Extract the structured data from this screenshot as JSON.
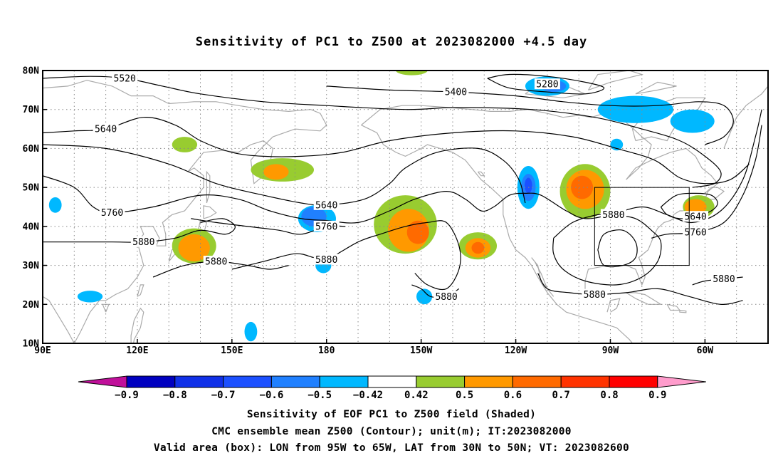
{
  "title": "Sensitivity of PC1 to Z500 at 2023082000 +4.5 day",
  "captions": [
    "Sensitivity of EOF PC1 to Z500 field (Shaded)",
    "CMC ensemble mean Z500 (Contour); unit(m); IT:2023082000",
    "Valid area (box): LON from 95W to 65W, LAT from 30N to 50N; VT: 2023082600"
  ],
  "map": {
    "lon_range": [
      90,
      320
    ],
    "lat_range": [
      10,
      80
    ],
    "x_ticks": [
      {
        "lon": 90,
        "label": "90E"
      },
      {
        "lon": 120,
        "label": "120E"
      },
      {
        "lon": 150,
        "label": "150E"
      },
      {
        "lon": 180,
        "label": "180"
      },
      {
        "lon": 210,
        "label": "150W"
      },
      {
        "lon": 240,
        "label": "120W"
      },
      {
        "lon": 270,
        "label": "90W"
      },
      {
        "lon": 300,
        "label": "60W"
      }
    ],
    "y_ticks": [
      {
        "lat": 80,
        "label": "80N"
      },
      {
        "lat": 70,
        "label": "70N"
      },
      {
        "lat": 60,
        "label": "60N"
      },
      {
        "lat": 50,
        "label": "50N"
      },
      {
        "lat": 40,
        "label": "40N"
      },
      {
        "lat": 30,
        "label": "30N"
      },
      {
        "lat": 20,
        "label": "20N"
      },
      {
        "lat": 10,
        "label": "10N"
      }
    ],
    "valid_box": {
      "lon_min": 265,
      "lon_max": 295,
      "lat_min": 30,
      "lat_max": 50
    },
    "colors": {
      "land": "#aaaaaa",
      "grid": "#888888",
      "contour": "#000000"
    }
  },
  "contours": [
    {
      "value": 5280,
      "label": "5280",
      "label_at": [
        250,
        76.5
      ],
      "pts": [
        [
          231,
          78
        ],
        [
          238,
          79
        ],
        [
          250,
          78.5
        ],
        [
          262,
          77
        ],
        [
          268,
          75.5
        ],
        [
          262,
          74
        ],
        [
          250,
          74.5
        ],
        [
          238,
          75.5
        ],
        [
          231,
          78
        ]
      ]
    },
    {
      "value": 5400,
      "label": "5400",
      "label_at": [
        221,
        74.5
      ],
      "pts": [
        [
          180,
          76
        ],
        [
          200,
          75
        ],
        [
          221,
          74.5
        ],
        [
          240,
          73.5
        ],
        [
          255,
          72
        ],
        [
          270,
          71
        ],
        [
          285,
          71
        ],
        [
          298,
          72
        ],
        [
          306,
          71
        ],
        [
          309,
          67
        ],
        [
          306,
          63
        ],
        [
          300,
          61
        ]
      ]
    },
    {
      "value": 5520,
      "label": "5520",
      "label_at": [
        116,
        78
      ],
      "pts": [
        [
          90,
          78
        ],
        [
          105,
          78.5
        ],
        [
          116,
          78
        ],
        [
          128,
          76
        ],
        [
          140,
          74
        ],
        [
          160,
          72
        ],
        [
          180,
          71
        ],
        [
          205,
          70
        ],
        [
          221,
          70.5
        ],
        [
          245,
          70
        ],
        [
          265,
          68
        ],
        [
          280,
          65
        ],
        [
          292,
          62
        ],
        [
          300,
          58
        ],
        [
          305,
          54
        ],
        [
          303,
          51
        ],
        [
          296,
          50
        ]
      ]
    },
    {
      "value": 5640,
      "label": "5640",
      "label_at": [
        110,
        65
      ],
      "pts": [
        [
          90,
          64
        ],
        [
          100,
          64.5
        ],
        [
          110,
          65
        ],
        [
          122,
          68
        ],
        [
          132,
          66
        ],
        [
          140,
          62
        ],
        [
          150,
          59
        ],
        [
          160,
          58
        ],
        [
          172,
          58
        ],
        [
          185,
          59
        ],
        [
          200,
          62
        ],
        [
          220,
          64
        ],
        [
          240,
          64.5
        ],
        [
          258,
          63
        ],
        [
          272,
          60
        ],
        [
          284,
          57
        ],
        [
          292,
          52.5
        ],
        [
          300,
          51
        ],
        [
          308,
          52
        ],
        [
          314,
          56
        ]
      ]
    },
    {
      "value": 5640,
      "label": "5640",
      "label_at": [
        180,
        45.5
      ],
      "pts": [
        [
          90,
          61
        ],
        [
          110,
          60
        ],
        [
          130,
          56
        ],
        [
          145,
          51
        ],
        [
          160,
          48
        ],
        [
          172,
          46
        ],
        [
          180,
          45.5
        ],
        [
          192,
          47
        ],
        [
          200,
          51
        ],
        [
          205,
          55
        ],
        [
          215,
          59
        ],
        [
          228,
          60
        ],
        [
          236,
          57
        ],
        [
          241,
          52
        ],
        [
          243,
          46
        ]
      ]
    },
    {
      "value": 5640,
      "label": "5640",
      "label_at": [
        297,
        42.5
      ],
      "pts": [
        [
          286,
          45
        ],
        [
          288,
          43
        ],
        [
          292,
          42
        ],
        [
          297,
          42.5
        ],
        [
          302,
          44
        ],
        [
          304,
          46
        ],
        [
          302,
          48
        ],
        [
          297,
          48.5
        ],
        [
          291,
          48
        ],
        [
          286,
          45
        ]
      ]
    },
    {
      "value": 5760,
      "label": "5760",
      "label_at": [
        112,
        43.5
      ],
      "pts": [
        [
          90,
          53
        ],
        [
          100,
          50
        ],
        [
          106,
          45
        ],
        [
          112,
          43.5
        ],
        [
          125,
          45
        ],
        [
          140,
          48
        ],
        [
          152,
          47
        ],
        [
          162,
          44
        ],
        [
          172,
          42
        ],
        [
          180,
          41.5
        ],
        [
          190,
          41
        ],
        [
          200,
          44
        ],
        [
          208,
          47
        ],
        [
          218,
          49
        ],
        [
          224,
          47
        ],
        [
          229,
          44
        ],
        [
          233,
          45
        ],
        [
          238,
          48
        ],
        [
          243,
          48.5
        ],
        [
          248,
          48
        ],
        [
          256,
          44
        ],
        [
          262,
          42
        ],
        [
          270,
          43
        ],
        [
          280,
          45
        ],
        [
          288,
          43
        ],
        [
          296,
          41
        ],
        [
          305,
          44
        ],
        [
          312,
          52
        ],
        [
          316,
          63
        ],
        [
          318,
          70
        ]
      ]
    },
    {
      "value": 5760,
      "label": "5760",
      "label_at": [
        180,
        40
      ],
      "pts": [
        [
          137,
          42
        ],
        [
          145,
          41
        ],
        [
          155,
          40
        ],
        [
          165,
          39
        ],
        [
          172,
          38
        ],
        [
          180,
          40
        ],
        [
          186,
          40
        ]
      ]
    },
    {
      "value": 5760,
      "label": "5760",
      "label_at": [
        297,
        38.5
      ],
      "pts": [
        [
          283,
          37
        ],
        [
          288,
          38
        ],
        [
          297,
          38.5
        ],
        [
          306,
          41
        ],
        [
          312,
          48
        ],
        [
          316,
          57
        ],
        [
          318,
          66
        ]
      ]
    },
    {
      "value": 5880,
      "label": "5880",
      "label_at": [
        122,
        36
      ],
      "pts": [
        [
          90,
          36
        ],
        [
          100,
          36
        ],
        [
          112,
          36
        ],
        [
          122,
          36
        ],
        [
          132,
          37
        ],
        [
          140,
          39
        ],
        [
          148,
          38
        ],
        [
          151,
          40
        ],
        [
          147,
          42
        ],
        [
          140,
          41
        ]
      ]
    },
    {
      "value": 5880,
      "label": "5880",
      "label_at": [
        180,
        31.5
      ],
      "pts": [
        [
          150,
          29
        ],
        [
          160,
          31
        ],
        [
          170,
          33
        ],
        [
          176,
          32
        ],
        [
          180,
          31.5
        ],
        [
          190,
          36
        ],
        [
          197,
          38
        ],
        [
          205,
          40
        ],
        [
          212,
          41
        ],
        [
          218,
          41
        ],
        [
          222,
          35
        ],
        [
          222,
          29
        ],
        [
          218,
          24
        ],
        [
          212,
          25
        ],
        [
          208,
          28
        ]
      ]
    },
    {
      "value": 5880,
      "label": "5880",
      "label_at": [
        145,
        31
      ],
      "pts": [
        [
          125,
          27
        ],
        [
          135,
          30
        ],
        [
          145,
          31
        ],
        [
          155,
          30
        ],
        [
          162,
          29
        ],
        [
          168,
          30
        ]
      ]
    },
    {
      "value": 5880,
      "label": "5880",
      "label_at": [
        218,
        22
      ],
      "pts": [
        [
          207,
          25
        ],
        [
          210,
          24
        ],
        [
          213,
          22
        ],
        [
          218,
          22
        ],
        [
          222,
          24
        ]
      ]
    },
    {
      "value": 5880,
      "label": "5880",
      "label_at": [
        265,
        22.5
      ],
      "pts": [
        [
          247,
          28
        ],
        [
          250,
          24
        ],
        [
          257,
          23
        ],
        [
          265,
          22.5
        ],
        [
          275,
          23
        ],
        [
          285,
          24
        ],
        [
          295,
          22
        ],
        [
          305,
          20
        ],
        [
          312,
          21
        ]
      ]
    },
    {
      "value": 5880,
      "label": "5880",
      "label_at": [
        271,
        43
      ],
      "pts": [
        [
          252,
          37
        ],
        [
          258,
          41
        ],
        [
          266,
          43
        ],
        [
          271,
          43
        ],
        [
          278,
          42
        ],
        [
          283,
          39
        ],
        [
          286,
          36
        ],
        [
          285,
          31
        ],
        [
          280,
          27
        ],
        [
          272,
          25
        ],
        [
          262,
          26
        ],
        [
          255,
          29
        ],
        [
          252,
          33
        ],
        [
          252,
          37
        ]
      ]
    },
    {
      "value": 5880,
      "label": "5880",
      "label_at": [
        306,
        26.5
      ],
      "pts": [
        [
          296,
          25
        ],
        [
          300,
          26
        ],
        [
          306,
          26.5
        ],
        [
          312,
          27
        ]
      ]
    },
    {
      "value": 5880,
      "label": "",
      "label_at": [
        0,
        0
      ],
      "pts": [
        [
          266,
          34
        ],
        [
          268,
          38
        ],
        [
          274,
          39
        ],
        [
          278,
          36
        ],
        [
          278,
          32
        ],
        [
          274,
          30
        ],
        [
          268,
          30
        ],
        [
          266,
          34
        ]
      ]
    }
  ],
  "blobs": [
    {
      "lon": 135,
      "lat": 61,
      "rx": 4,
      "ry": 2,
      "level": 0.5
    },
    {
      "lon": 166,
      "lat": 54.5,
      "rx": 10,
      "ry": 3,
      "level": 0.5
    },
    {
      "lon": 164,
      "lat": 54,
      "rx": 4,
      "ry": 2,
      "level": 0.6
    },
    {
      "lon": 138,
      "lat": 35,
      "rx": 7,
      "ry": 4.5,
      "level": 0.5
    },
    {
      "lon": 138,
      "lat": 34.5,
      "rx": 5,
      "ry": 3.5,
      "level": 0.6
    },
    {
      "lon": 205,
      "lat": 40.5,
      "rx": 10,
      "ry": 7.5,
      "level": 0.5
    },
    {
      "lon": 206,
      "lat": 39,
      "rx": 6.5,
      "ry": 5.5,
      "level": 0.6
    },
    {
      "lon": 209,
      "lat": 38.5,
      "rx": 3.5,
      "ry": 3,
      "level": 0.7
    },
    {
      "lon": 228,
      "lat": 35,
      "rx": 6,
      "ry": 3.5,
      "level": 0.5
    },
    {
      "lon": 228,
      "lat": 34.5,
      "rx": 4,
      "ry": 2.5,
      "level": 0.6
    },
    {
      "lon": 228,
      "lat": 34.5,
      "rx": 2,
      "ry": 1.5,
      "level": 0.7
    },
    {
      "lon": 262,
      "lat": 49,
      "rx": 8,
      "ry": 7,
      "level": 0.5
    },
    {
      "lon": 262,
      "lat": 49.5,
      "rx": 6,
      "ry": 5,
      "level": 0.6
    },
    {
      "lon": 261,
      "lat": 50,
      "rx": 3.5,
      "ry": 3,
      "level": 0.7
    },
    {
      "lon": 298,
      "lat": 45,
      "rx": 5,
      "ry": 3,
      "level": 0.5
    },
    {
      "lon": 297,
      "lat": 45,
      "rx": 3.5,
      "ry": 2,
      "level": 0.6
    },
    {
      "lon": 207,
      "lat": 80,
      "rx": 5,
      "ry": 1.2,
      "level": 0.5
    },
    {
      "lon": 177,
      "lat": 42,
      "rx": 6,
      "ry": 3.5,
      "level": -0.5
    },
    {
      "lon": 176,
      "lat": 42.5,
      "rx": 4,
      "ry": 2.5,
      "level": -0.6
    },
    {
      "lon": 179,
      "lat": 30,
      "rx": 2.5,
      "ry": 2,
      "level": -0.5
    },
    {
      "lon": 244,
      "lat": 50,
      "rx": 3.5,
      "ry": 5.5,
      "level": -0.5
    },
    {
      "lon": 244,
      "lat": 50,
      "rx": 2.3,
      "ry": 3.5,
      "level": -0.6
    },
    {
      "lon": 244,
      "lat": 50.5,
      "rx": 1.2,
      "ry": 2,
      "level": -0.7
    },
    {
      "lon": 250,
      "lat": 76,
      "rx": 7,
      "ry": 2.5,
      "level": -0.5
    },
    {
      "lon": 252,
      "lat": 76,
      "rx": 4,
      "ry": 1.5,
      "level": -0.6
    },
    {
      "lon": 278,
      "lat": 70,
      "rx": 12,
      "ry": 3.5,
      "level": -0.5
    },
    {
      "lon": 296,
      "lat": 67,
      "rx": 7,
      "ry": 3,
      "level": -0.5
    },
    {
      "lon": 272,
      "lat": 61,
      "rx": 2,
      "ry": 1.5,
      "level": -0.5
    },
    {
      "lon": 94,
      "lat": 45.5,
      "rx": 2,
      "ry": 2,
      "level": -0.5
    },
    {
      "lon": 211,
      "lat": 22,
      "rx": 2.5,
      "ry": 2,
      "level": -0.5
    },
    {
      "lon": 105,
      "lat": 22,
      "rx": 4,
      "ry": 1.5,
      "level": -0.5
    },
    {
      "lon": 156,
      "lat": 13,
      "rx": 2,
      "ry": 2.5,
      "level": -0.5
    }
  ],
  "colorbar": {
    "labels": [
      "−0.9",
      "−0.8",
      "−0.7",
      "−0.6",
      "−0.5",
      "−0.42",
      "0.42",
      "0.5",
      "0.6",
      "0.7",
      "0.8",
      "0.9"
    ],
    "colors": [
      "#c0109a",
      "#0000c0",
      "#1030e8",
      "#1c50ff",
      "#2080ff",
      "#00b8ff",
      "#ffffff",
      "#98cc30",
      "#ff9900",
      "#ff6a00",
      "#ff3300",
      "#ff0000",
      "#ff9ccc"
    ]
  }
}
